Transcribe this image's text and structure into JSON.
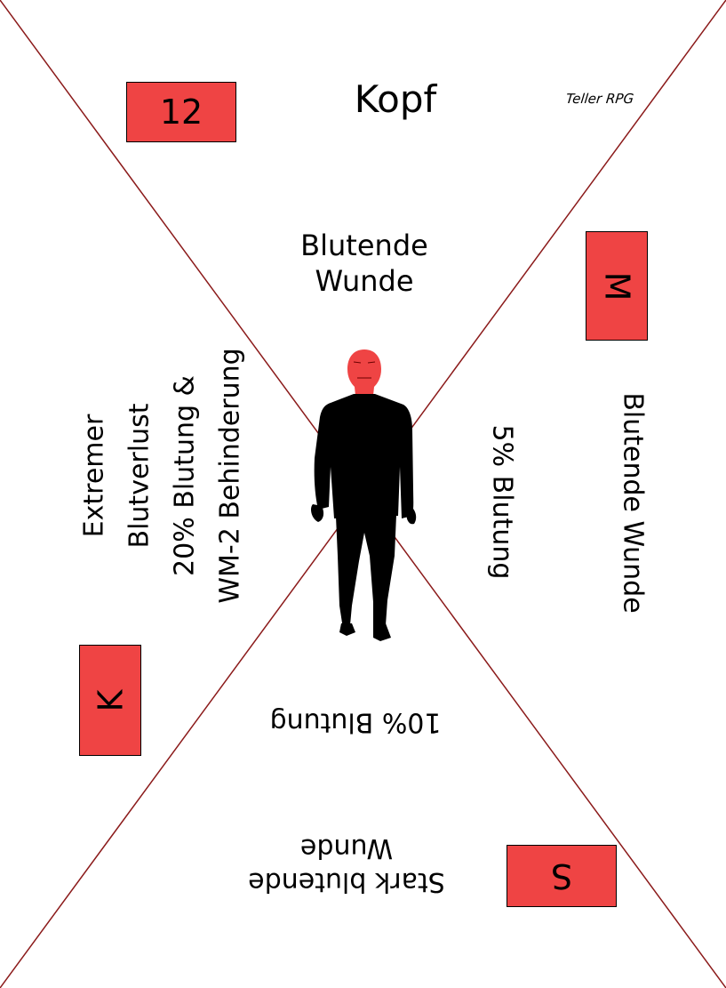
{
  "card": {
    "title": "Kopf",
    "brand": "Teller RPG",
    "number_box": "12",
    "box_right": "M",
    "box_left": "K",
    "box_bottom": "S",
    "top_label_line1": "Blutende",
    "top_label_line2": "Wunde",
    "left_line1": "Extremer",
    "left_line2": "Blutverlust",
    "left_line3": "20% Blutung &",
    "left_line4": "WM-2 Behinderung",
    "right_inner": "5% Blutung",
    "right_outer": "Blutende Wunde",
    "bottom_inner": "10% Blutung",
    "bottom_outer_line1": "Stark blutende",
    "bottom_outer_line2": "Wunde"
  },
  "colors": {
    "accent_red": "#ef4444",
    "diagonal_line": "#8b1a1a",
    "silhouette": "#000000"
  }
}
